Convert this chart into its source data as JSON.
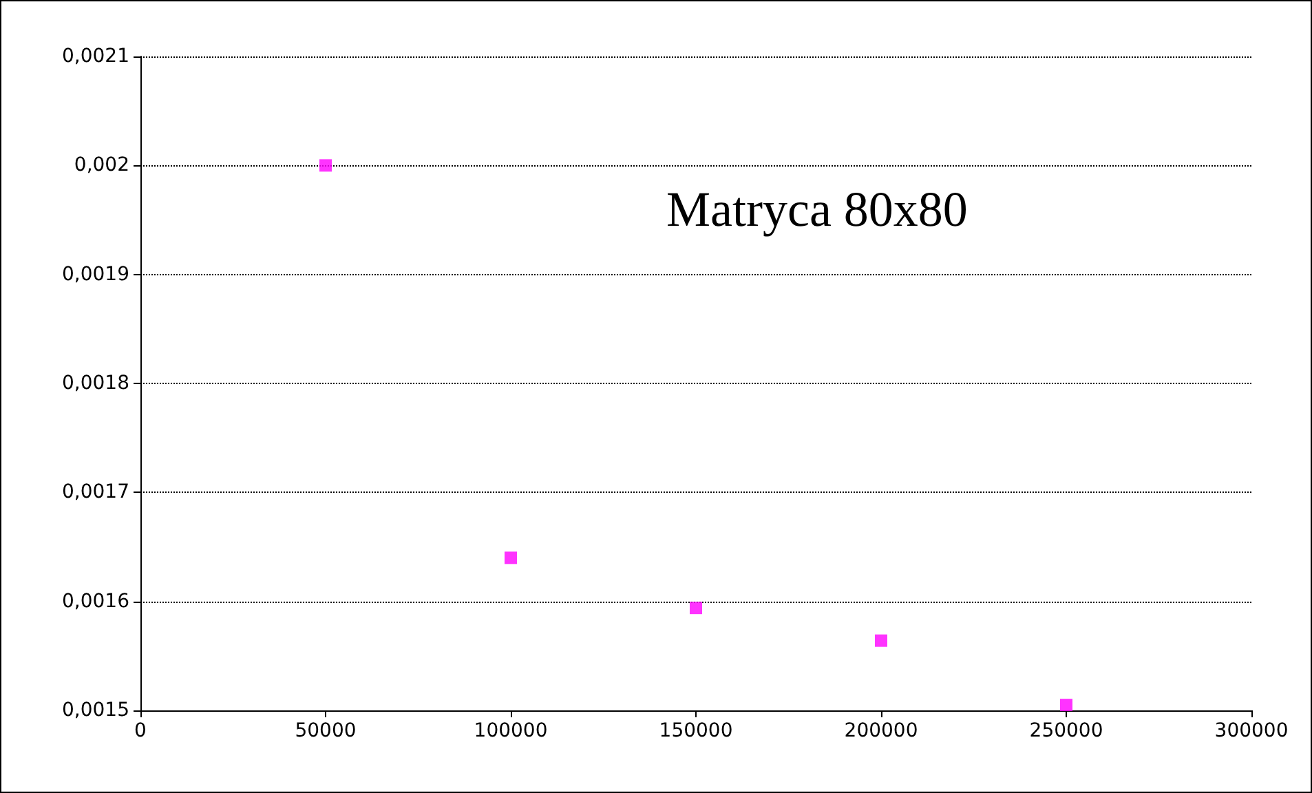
{
  "chart_data": {
    "type": "scatter",
    "x": [
      50000,
      100000,
      150000,
      200000,
      250000
    ],
    "series": [
      {
        "color": "#ff00ff",
        "values": [
          0.002,
          0.00164,
          0.001594,
          0.001564,
          0.001505
        ]
      }
    ],
    "xlim": [
      0,
      300000
    ],
    "xticks": [
      0,
      50000,
      100000,
      150000,
      200000,
      250000,
      300000
    ],
    "ylim": [
      0.0015,
      0.0021
    ],
    "yticks": [
      {
        "value": 0.0015,
        "label": "0,0015"
      },
      {
        "value": 0.0016,
        "label": "0,0016"
      },
      {
        "value": 0.0017,
        "label": "0,0017"
      },
      {
        "value": 0.0018,
        "label": "0,0018"
      },
      {
        "value": 0.0019,
        "label": "0,0019"
      },
      {
        "value": 0.002,
        "label": "0,002"
      },
      {
        "value": 0.0021,
        "label": "0,0021"
      }
    ],
    "grid": "y",
    "marker": "square",
    "annotations": [
      "Matryca 80x80"
    ]
  }
}
